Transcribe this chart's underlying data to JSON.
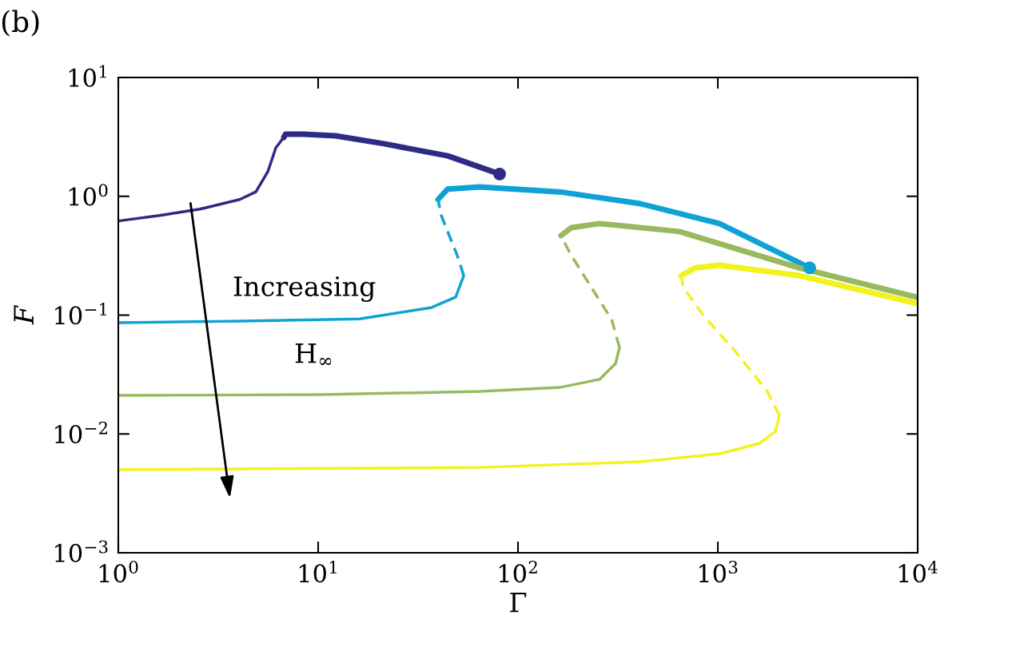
{
  "chart_data": {
    "type": "line",
    "xlabel": "Γ",
    "ylabel": "F",
    "log": "xy",
    "grid": false,
    "legend": false,
    "xlim": [
      1,
      10000
    ],
    "ylim": [
      0.001,
      10
    ],
    "xticks": [
      {
        "value": 1,
        "label": "10$^{0}$"
      },
      {
        "value": 10,
        "label": "10$^{1}$"
      },
      {
        "value": 100,
        "label": "10$^{2}$"
      },
      {
        "value": 1000,
        "label": "10$^{3}$"
      },
      {
        "value": 10000,
        "label": "10$^{4}$"
      }
    ],
    "yticks": [
      {
        "value": 0.001,
        "label": "10$^{−3}$"
      },
      {
        "value": 0.01,
        "label": "10$^{−2}$"
      },
      {
        "value": 0.1,
        "label": "10$^{−1}$"
      },
      {
        "value": 1,
        "label": "10$^{0}$"
      },
      {
        "value": 10,
        "label": "10$^{1}$"
      }
    ],
    "annotations": [
      "(b)",
      "Increasing",
      "H$_{∞}$"
    ],
    "series": [
      {
        "color": "#2e2a86",
        "line_style": "solid",
        "x": [
          1,
          1.61,
          2.56,
          4.05,
          4.88,
          5.6,
          6.14,
          6.73
        ],
        "values": [
          0.62,
          0.69,
          0.78,
          0.94,
          1.09,
          1.61,
          2.56,
          3.13
        ]
      },
      {
        "color": "#2e2a86",
        "line_style": "solid",
        "x": [
          6.73,
          6.86,
          8.47,
          12.2,
          21.3,
          44.5,
          80.9
        ],
        "values": [
          3.13,
          3.33,
          3.33,
          3.23,
          2.77,
          2.19,
          1.54
        ]
      },
      {
        "type": "scatter",
        "color": "#2e2a86",
        "x": [
          80.9
        ],
        "values": [
          1.54
        ]
      },
      {
        "color": "#0ea2d6",
        "line_style": "solid",
        "x": [
          1,
          4.05,
          16.1,
          37,
          48.8,
          53.5
        ],
        "values": [
          0.0863,
          0.089,
          0.093,
          0.116,
          0.142,
          0.215
        ]
      },
      {
        "color": "#0ea2d6",
        "line_style": "dashed",
        "x": [
          53.5,
          49.7,
          45.3,
          41.3,
          39.8
        ],
        "values": [
          0.215,
          0.317,
          0.467,
          0.69,
          0.94
        ]
      },
      {
        "color": "#0ea2d6",
        "line_style": "solid",
        "x": [
          39.8,
          44.5,
          64.3,
          161,
          405,
          1019,
          2884
        ],
        "values": [
          0.94,
          1.15,
          1.2,
          1.09,
          0.87,
          0.59,
          0.25
        ]
      },
      {
        "type": "scatter",
        "color": "#0ea2d6",
        "x": [
          2884
        ],
        "values": [
          0.25
        ]
      },
      {
        "color": "#98b95e",
        "line_style": "solid",
        "x": [
          1,
          10.2,
          64.3,
          161,
          256,
          308,
          322
        ],
        "values": [
          0.0211,
          0.0214,
          0.0228,
          0.0246,
          0.0288,
          0.0392,
          0.0534
        ]
      },
      {
        "color": "#98b95e",
        "line_style": "dashed",
        "x": [
          322,
          294,
          233,
          185,
          164
        ],
        "values": [
          0.0534,
          0.092,
          0.171,
          0.317,
          0.467
        ]
      },
      {
        "color": "#98b95e",
        "line_style": "solid",
        "x": [
          164,
          185,
          256,
          643,
          2559,
          10000
        ],
        "values": [
          0.467,
          0.545,
          0.59,
          0.505,
          0.25,
          0.141
        ]
      },
      {
        "color": "#f2f21c",
        "line_style": "solid",
        "x": [
          1,
          64.3,
          405,
          1019,
          1614,
          1941,
          2032
        ],
        "values": [
          0.005,
          0.00523,
          0.00583,
          0.00681,
          0.00833,
          0.0105,
          0.0143
        ]
      },
      {
        "color": "#f2f21c",
        "line_style": "dashed",
        "x": [
          2032,
          1770,
          1225,
          847,
          673,
          655
        ],
        "values": [
          0.0143,
          0.0228,
          0.0494,
          0.0993,
          0.171,
          0.215
        ]
      },
      {
        "color": "#f2f21c",
        "line_style": "solid",
        "x": [
          655,
          773,
          1019,
          2559,
          10000
        ],
        "values": [
          0.215,
          0.25,
          0.263,
          0.215,
          0.125
        ]
      }
    ]
  }
}
